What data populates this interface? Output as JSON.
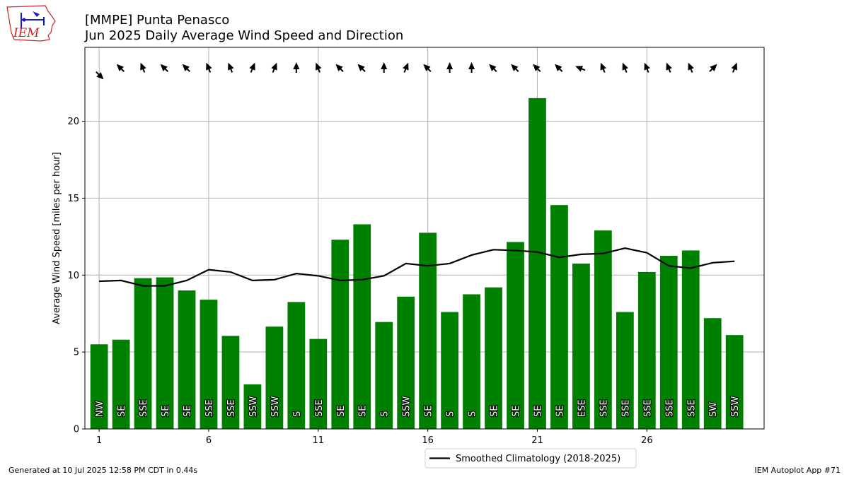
{
  "header": {
    "title_line1": "[MMPE] Punta Penasco",
    "title_line2": "Jun 2025 Daily Average Wind Speed and Direction",
    "logo_text": "IEM"
  },
  "footer": {
    "generated": "Generated at 10 Jul 2025 12:58 PM CDT in 0.44s",
    "app": "IEM Autoplot App #71"
  },
  "colors": {
    "bar": "#008000",
    "climatology": "#000000",
    "grid": "#b0b0b0",
    "logo": "#cc2222"
  },
  "chart_data": {
    "type": "bar",
    "x": [
      1,
      2,
      3,
      4,
      5,
      6,
      7,
      8,
      9,
      10,
      11,
      12,
      13,
      14,
      15,
      16,
      17,
      18,
      19,
      20,
      21,
      22,
      23,
      24,
      25,
      26,
      27,
      28,
      29,
      30
    ],
    "xticks": [
      1,
      6,
      11,
      16,
      21,
      26
    ],
    "ylabel": "Average Wind Speed [miles per hour]",
    "ylim": [
      0,
      24.8
    ],
    "yticks": [
      0,
      5,
      10,
      15,
      20
    ],
    "grid": true,
    "legend_position": "bottom-center",
    "series": [
      {
        "kind": "bar",
        "values": [
          5.5,
          5.8,
          9.8,
          9.85,
          9.0,
          8.4,
          6.05,
          2.9,
          6.65,
          8.25,
          5.85,
          12.3,
          13.3,
          6.95,
          8.6,
          12.75,
          7.6,
          8.75,
          9.2,
          12.15,
          21.5,
          14.55,
          10.75,
          12.9,
          7.6,
          10.2,
          11.25,
          11.6,
          7.2,
          6.1
        ],
        "directions": [
          "NW",
          "SE",
          "SSE",
          "SE",
          "SE",
          "SSE",
          "SSE",
          "SSW",
          "SSW",
          "S",
          "SSE",
          "SE",
          "SE",
          "S",
          "SSW",
          "SE",
          "S",
          "S",
          "SE",
          "SE",
          "SE",
          "SE",
          "ESE",
          "SSE",
          "SSE",
          "SSE",
          "SSE",
          "SSE",
          "SW",
          "SSW"
        ]
      },
      {
        "kind": "line",
        "name": "Smoothed Climatology (2018-2025)",
        "values": [
          9.6,
          9.65,
          9.3,
          9.3,
          9.65,
          10.35,
          10.2,
          9.65,
          9.7,
          10.1,
          9.95,
          9.65,
          9.7,
          9.95,
          10.75,
          10.6,
          10.75,
          11.3,
          11.65,
          11.6,
          11.5,
          11.15,
          11.35,
          11.4,
          11.75,
          11.45,
          10.6,
          10.45,
          10.8,
          10.9
        ]
      }
    ]
  }
}
